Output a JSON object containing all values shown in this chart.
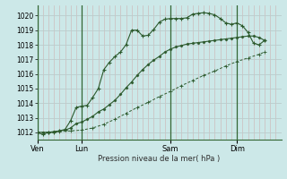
{
  "bg_color": "#cce8e8",
  "grid_color": "#bbcccc",
  "vgrid_color": "#cc9999",
  "line_color": "#2d5a2d",
  "ylabel": "Pression niveau de la mer( hPa )",
  "ylim": [
    1011.5,
    1020.7
  ],
  "yticks": [
    1012,
    1013,
    1014,
    1015,
    1016,
    1017,
    1018,
    1019,
    1020
  ],
  "day_labels": [
    "Ven",
    "Lun",
    "Sam",
    "Dim"
  ],
  "day_positions": [
    0,
    8,
    24,
    36
  ],
  "day_line_color": "#336633",
  "xmax": 44,
  "series1_x": [
    0,
    1,
    2,
    3,
    4,
    5,
    6,
    7,
    8,
    9,
    10,
    11,
    12,
    13,
    14,
    15,
    16,
    17,
    18,
    19,
    20,
    21,
    22,
    23,
    24,
    25,
    26,
    27,
    28,
    29,
    30,
    31,
    32,
    33,
    34,
    35,
    36,
    37,
    38,
    39,
    40,
    41
  ],
  "series1_y": [
    1012.0,
    1011.85,
    1012.0,
    1012.0,
    1012.1,
    1012.2,
    1012.8,
    1013.7,
    1013.8,
    1013.85,
    1014.4,
    1015.0,
    1016.3,
    1016.8,
    1017.2,
    1017.5,
    1018.0,
    1019.0,
    1019.0,
    1018.6,
    1018.65,
    1019.05,
    1019.55,
    1019.75,
    1019.8,
    1019.8,
    1019.8,
    1019.85,
    1020.1,
    1020.15,
    1020.2,
    1020.15,
    1020.05,
    1019.8,
    1019.5,
    1019.4,
    1019.5,
    1019.3,
    1018.85,
    1018.1,
    1018.0,
    1018.3
  ],
  "series2_x": [
    0,
    1,
    2,
    3,
    4,
    5,
    6,
    7,
    8,
    9,
    10,
    11,
    12,
    13,
    14,
    15,
    16,
    17,
    18,
    19,
    20,
    21,
    22,
    23,
    24,
    25,
    26,
    27,
    28,
    29,
    30,
    31,
    32,
    33,
    34,
    35,
    36,
    37,
    38,
    39,
    40,
    41
  ],
  "series2_y": [
    1012.0,
    1012.0,
    1012.0,
    1012.05,
    1012.1,
    1012.15,
    1012.3,
    1012.6,
    1012.7,
    1012.9,
    1013.1,
    1013.4,
    1013.6,
    1013.9,
    1014.2,
    1014.6,
    1015.05,
    1015.45,
    1015.9,
    1016.3,
    1016.65,
    1016.95,
    1017.2,
    1017.5,
    1017.7,
    1017.85,
    1017.95,
    1018.05,
    1018.1,
    1018.15,
    1018.2,
    1018.25,
    1018.3,
    1018.35,
    1018.4,
    1018.45,
    1018.5,
    1018.55,
    1018.6,
    1018.6,
    1018.5,
    1018.3
  ],
  "series3_x": [
    0,
    2,
    4,
    6,
    8,
    10,
    12,
    14,
    16,
    18,
    20,
    22,
    24,
    26,
    28,
    30,
    32,
    34,
    36,
    38,
    40,
    41
  ],
  "series3_y": [
    1012.0,
    1012.0,
    1012.05,
    1012.1,
    1012.15,
    1012.3,
    1012.55,
    1012.9,
    1013.3,
    1013.7,
    1014.05,
    1014.45,
    1014.8,
    1015.2,
    1015.55,
    1015.9,
    1016.2,
    1016.55,
    1016.85,
    1017.1,
    1017.35,
    1017.5
  ]
}
